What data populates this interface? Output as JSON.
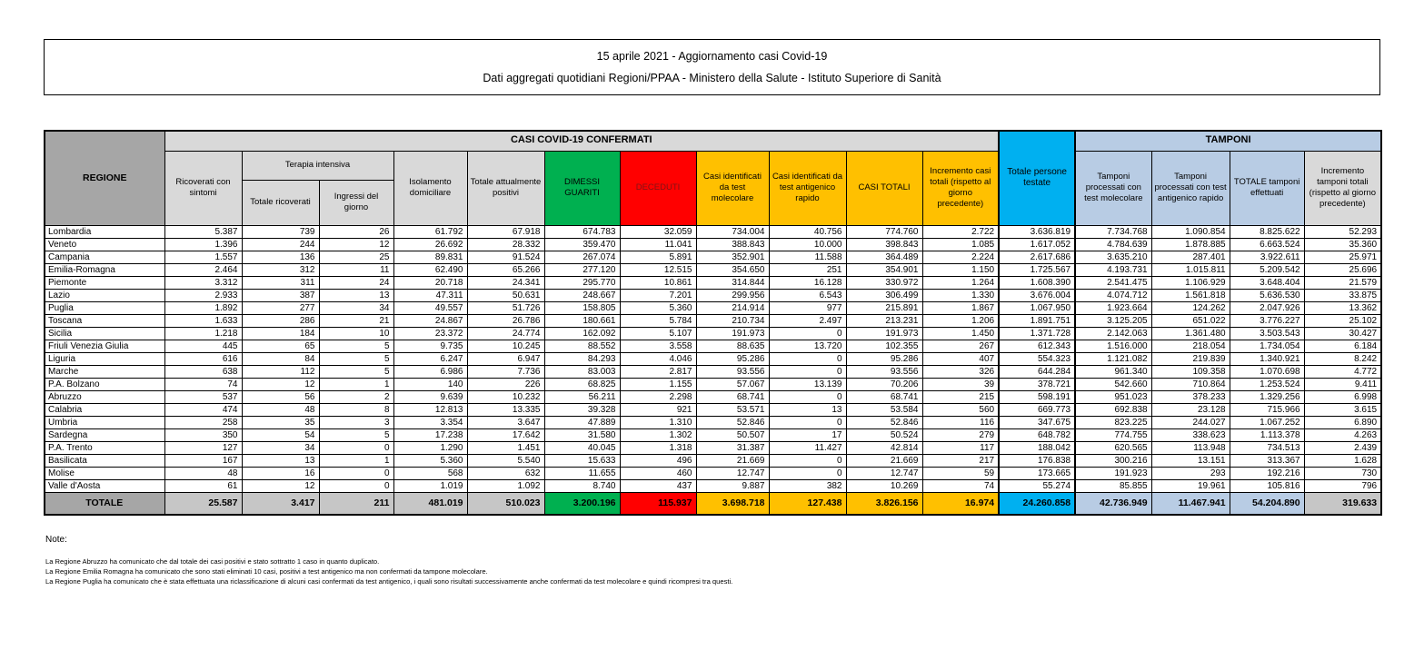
{
  "title_lines": [
    "15 aprile 2021 - Aggiornamento casi Covid-19",
    "Dati aggregati quotidiani Regioni/PPAA - Ministero della Salute - Istituto Superiore di Sanità"
  ],
  "table": {
    "banner": {
      "confermati": "CASI COVID-19 CONFERMATI",
      "tamponi": "TAMPONI"
    },
    "headers": {
      "regione": "REGIONE",
      "ricoverati": "Ricoverati con sintomi",
      "terapia_intensiva": "Terapia intensiva",
      "totale_ricoverati": "Totale ricoverati",
      "ingressi": "Ingressi del giorno",
      "isolamento": "Isolamento domiciliare",
      "attualmente_positivi": "Totale attualmente positivi",
      "dimessi": "DIMESSI GUARITI",
      "deceduti": "DECEDUTI",
      "casi_molecolare": "Casi identificati da test molecolare",
      "casi_antigenico": "Casi identificati da test antigenico rapido",
      "casi_totali": "CASI TOTALI",
      "incremento_casi": "Incremento casi totali (rispetto al giorno precedente)",
      "persone_testate": "Totale persone testate",
      "tamponi_molecolare": "Tamponi processati con test molecolare",
      "tamponi_antigenico": "Tamponi processati con test antigenico rapido",
      "totale_tamponi": "TOTALE tamponi effettuati",
      "incremento_tamponi": "Incremento tamponi totali (rispetto al giorno precedente)"
    },
    "rows": [
      [
        "Lombardia",
        "5.387",
        "739",
        "26",
        "61.792",
        "67.918",
        "674.783",
        "32.059",
        "734.004",
        "40.756",
        "774.760",
        "2.722",
        "3.636.819",
        "7.734.768",
        "1.090.854",
        "8.825.622",
        "52.293"
      ],
      [
        "Veneto",
        "1.396",
        "244",
        "12",
        "26.692",
        "28.332",
        "359.470",
        "11.041",
        "388.843",
        "10.000",
        "398.843",
        "1.085",
        "1.617.052",
        "4.784.639",
        "1.878.885",
        "6.663.524",
        "35.360"
      ],
      [
        "Campania",
        "1.557",
        "136",
        "25",
        "89.831",
        "91.524",
        "267.074",
        "5.891",
        "352.901",
        "11.588",
        "364.489",
        "2.224",
        "2.617.686",
        "3.635.210",
        "287.401",
        "3.922.611",
        "25.971"
      ],
      [
        "Emilia-Romagna",
        "2.464",
        "312",
        "11",
        "62.490",
        "65.266",
        "277.120",
        "12.515",
        "354.650",
        "251",
        "354.901",
        "1.150",
        "1.725.567",
        "4.193.731",
        "1.015.811",
        "5.209.542",
        "25.696"
      ],
      [
        "Piemonte",
        "3.312",
        "311",
        "24",
        "20.718",
        "24.341",
        "295.770",
        "10.861",
        "314.844",
        "16.128",
        "330.972",
        "1.264",
        "1.608.390",
        "2.541.475",
        "1.106.929",
        "3.648.404",
        "21.579"
      ],
      [
        "Lazio",
        "2.933",
        "387",
        "13",
        "47.311",
        "50.631",
        "248.667",
        "7.201",
        "299.956",
        "6.543",
        "306.499",
        "1.330",
        "3.676.004",
        "4.074.712",
        "1.561.818",
        "5.636.530",
        "33.875"
      ],
      [
        "Puglia",
        "1.892",
        "277",
        "34",
        "49.557",
        "51.726",
        "158.805",
        "5.360",
        "214.914",
        "977",
        "215.891",
        "1.867",
        "1.067.950",
        "1.923.664",
        "124.262",
        "2.047.926",
        "13.362"
      ],
      [
        "Toscana",
        "1.633",
        "286",
        "21",
        "24.867",
        "26.786",
        "180.661",
        "5.784",
        "210.734",
        "2.497",
        "213.231",
        "1.206",
        "1.891.751",
        "3.125.205",
        "651.022",
        "3.776.227",
        "25.102"
      ],
      [
        "Sicilia",
        "1.218",
        "184",
        "10",
        "23.372",
        "24.774",
        "162.092",
        "5.107",
        "191.973",
        "0",
        "191.973",
        "1.450",
        "1.371.728",
        "2.142.063",
        "1.361.480",
        "3.503.543",
        "30.427"
      ],
      [
        "Friuli Venezia Giulia",
        "445",
        "65",
        "5",
        "9.735",
        "10.245",
        "88.552",
        "3.558",
        "88.635",
        "13.720",
        "102.355",
        "267",
        "612.343",
        "1.516.000",
        "218.054",
        "1.734.054",
        "6.184"
      ],
      [
        "Liguria",
        "616",
        "84",
        "5",
        "6.247",
        "6.947",
        "84.293",
        "4.046",
        "95.286",
        "0",
        "95.286",
        "407",
        "554.323",
        "1.121.082",
        "219.839",
        "1.340.921",
        "8.242"
      ],
      [
        "Marche",
        "638",
        "112",
        "5",
        "6.986",
        "7.736",
        "83.003",
        "2.817",
        "93.556",
        "0",
        "93.556",
        "326",
        "644.284",
        "961.340",
        "109.358",
        "1.070.698",
        "4.772"
      ],
      [
        "P.A. Bolzano",
        "74",
        "12",
        "1",
        "140",
        "226",
        "68.825",
        "1.155",
        "57.067",
        "13.139",
        "70.206",
        "39",
        "378.721",
        "542.660",
        "710.864",
        "1.253.524",
        "9.411"
      ],
      [
        "Abruzzo",
        "537",
        "56",
        "2",
        "9.639",
        "10.232",
        "56.211",
        "2.298",
        "68.741",
        "0",
        "68.741",
        "215",
        "598.191",
        "951.023",
        "378.233",
        "1.329.256",
        "6.998"
      ],
      [
        "Calabria",
        "474",
        "48",
        "8",
        "12.813",
        "13.335",
        "39.328",
        "921",
        "53.571",
        "13",
        "53.584",
        "560",
        "669.773",
        "692.838",
        "23.128",
        "715.966",
        "3.615"
      ],
      [
        "Umbria",
        "258",
        "35",
        "3",
        "3.354",
        "3.647",
        "47.889",
        "1.310",
        "52.846",
        "0",
        "52.846",
        "116",
        "347.675",
        "823.225",
        "244.027",
        "1.067.252",
        "6.890"
      ],
      [
        "Sardegna",
        "350",
        "54",
        "5",
        "17.238",
        "17.642",
        "31.580",
        "1.302",
        "50.507",
        "17",
        "50.524",
        "279",
        "648.782",
        "774.755",
        "338.623",
        "1.113.378",
        "4.263"
      ],
      [
        "P.A. Trento",
        "127",
        "34",
        "0",
        "1.290",
        "1.451",
        "40.045",
        "1.318",
        "31.387",
        "11.427",
        "42.814",
        "117",
        "188.042",
        "620.565",
        "113.948",
        "734.513",
        "2.439"
      ],
      [
        "Basilicata",
        "167",
        "13",
        "1",
        "5.360",
        "5.540",
        "15.633",
        "496",
        "21.669",
        "0",
        "21.669",
        "217",
        "176.838",
        "300.216",
        "13.151",
        "313.367",
        "1.628"
      ],
      [
        "Molise",
        "48",
        "16",
        "0",
        "568",
        "632",
        "11.655",
        "460",
        "12.747",
        "0",
        "12.747",
        "59",
        "173.665",
        "191.923",
        "293",
        "192.216",
        "730"
      ],
      [
        "Valle d'Aosta",
        "61",
        "12",
        "0",
        "1.019",
        "1.092",
        "8.740",
        "437",
        "9.887",
        "382",
        "10.269",
        "74",
        "55.274",
        "85.855",
        "19.961",
        "105.816",
        "796"
      ]
    ],
    "total_row": [
      "TOTALE",
      "25.587",
      "3.417",
      "211",
      "481.019",
      "510.023",
      "3.200.196",
      "115.937",
      "3.698.718",
      "127.438",
      "3.826.156",
      "16.974",
      "24.260.858",
      "42.736.949",
      "11.467.941",
      "54.204.890",
      "319.633"
    ]
  },
  "notes": {
    "label": "Note:",
    "lines": [
      "La Regione Abruzzo ha comunicato che dal totale dei casi positivi e stato sottratto 1 caso in quanto duplicato.",
      "La Regione Emilia Romagna ha comunicato che sono stati eliminati 10 casi, positivi a test antigenico ma non confermati da tampone molecolare.",
      "La Regione Puglia ha comunicato che è stata effettuata una riclassificazione di alcuni casi confermati da test antigenico, i quali sono risultati successivamente anche confermati da test molecolare e quindi ricompresi tra questi."
    ]
  },
  "colors": {
    "header_gray": "#D9D9D9",
    "regione_gray": "#A6A6A6",
    "total_gray": "#C6C6C6",
    "green": "#00B050",
    "red": "#FF0000",
    "deceduti_text": "#7F1416",
    "gold": "#FFC000",
    "cyan": "#00B0F0",
    "light_blue": "#B8CCE4"
  }
}
